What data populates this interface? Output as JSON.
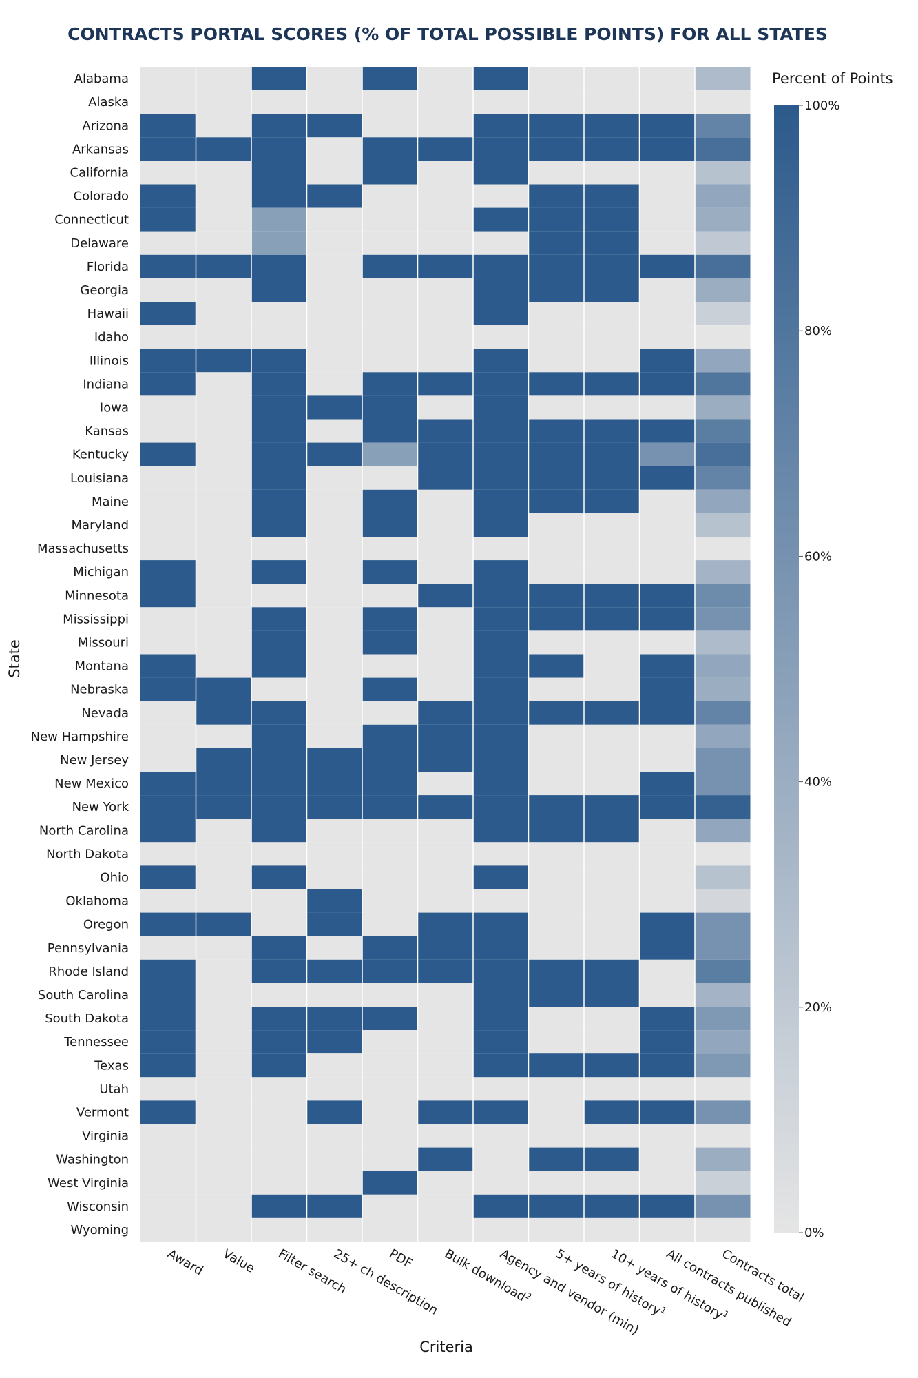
{
  "chart_data": {
    "type": "heatmap",
    "title": "CONTRACTS PORTAL SCORES (% OF TOTAL POSSIBLE POINTS) FOR ALL STATES",
    "xlabel": "Criteria",
    "ylabel": "State",
    "legend": {
      "title": "Percent of Points",
      "ticks": [
        "100%",
        "80%",
        "60%",
        "40%",
        "20%",
        "0%"
      ],
      "range": [
        0,
        100
      ],
      "color_low": "#e5e5e5",
      "color_high": "#2c5a8c"
    },
    "criteria": [
      {
        "label": "Award"
      },
      {
        "label": "Value"
      },
      {
        "label": "Filter search"
      },
      {
        "label": "25+ ch description"
      },
      {
        "label": "PDF"
      },
      {
        "label": "Bulk download",
        "sup": "2"
      },
      {
        "label": "Agency and vendor (min)"
      },
      {
        "label": "5+ years of history",
        "sup": "1"
      },
      {
        "label": "10+ years of history",
        "sup": "1"
      },
      {
        "label": "All contracts published"
      },
      {
        "label": "Contracts total"
      }
    ],
    "states": [
      "Alabama",
      "Alaska",
      "Arizona",
      "Arkansas",
      "California",
      "Colorado",
      "Connecticut",
      "Delaware",
      "Florida",
      "Georgia",
      "Hawaii",
      "Idaho",
      "Illinois",
      "Indiana",
      "Iowa",
      "Kansas",
      "Kentucky",
      "Louisiana",
      "Maine",
      "Maryland",
      "Massachusetts",
      "Michigan",
      "Minnesota",
      "Mississippi",
      "Missouri",
      "Montana",
      "Nebraska",
      "Nevada",
      "New Hampshire",
      "New Jersey",
      "New Mexico",
      "New York",
      "North Carolina",
      "North Dakota",
      "Ohio",
      "Oklahoma",
      "Oregon",
      "Pennsylvania",
      "Rhode Island",
      "South Carolina",
      "South Dakota",
      "Tennessee",
      "Texas",
      "Utah",
      "Vermont",
      "Virginia",
      "Washington",
      "West Virginia",
      "Wisconsin",
      "Wyoming"
    ],
    "values": [
      [
        0,
        0,
        100,
        0,
        100,
        0,
        100,
        0,
        0,
        0,
        30
      ],
      [
        0,
        0,
        0,
        0,
        0,
        0,
        0,
        0,
        0,
        0,
        0
      ],
      [
        100,
        0,
        100,
        100,
        0,
        0,
        100,
        100,
        100,
        100,
        70
      ],
      [
        100,
        100,
        100,
        0,
        100,
        100,
        100,
        100,
        100,
        100,
        85
      ],
      [
        0,
        0,
        100,
        0,
        100,
        0,
        100,
        0,
        0,
        0,
        25
      ],
      [
        100,
        0,
        100,
        100,
        0,
        0,
        0,
        100,
        100,
        0,
        45
      ],
      [
        100,
        0,
        50,
        0,
        0,
        0,
        100,
        100,
        100,
        0,
        40
      ],
      [
        0,
        0,
        50,
        0,
        0,
        0,
        0,
        100,
        100,
        0,
        20
      ],
      [
        100,
        100,
        100,
        0,
        100,
        100,
        100,
        100,
        100,
        100,
        85
      ],
      [
        0,
        0,
        100,
        0,
        0,
        0,
        100,
        100,
        100,
        0,
        40
      ],
      [
        100,
        0,
        0,
        0,
        0,
        0,
        100,
        0,
        0,
        0,
        15
      ],
      [
        0,
        0,
        0,
        0,
        0,
        0,
        0,
        0,
        0,
        0,
        0
      ],
      [
        100,
        100,
        100,
        0,
        0,
        0,
        100,
        0,
        0,
        100,
        45
      ],
      [
        100,
        0,
        100,
        0,
        100,
        100,
        100,
        100,
        100,
        100,
        80
      ],
      [
        0,
        0,
        100,
        100,
        100,
        0,
        100,
        0,
        0,
        0,
        40
      ],
      [
        0,
        0,
        100,
        0,
        100,
        100,
        100,
        100,
        100,
        100,
        75
      ],
      [
        100,
        0,
        100,
        100,
        50,
        100,
        100,
        100,
        100,
        60,
        85
      ],
      [
        0,
        0,
        100,
        0,
        0,
        100,
        100,
        100,
        100,
        100,
        70
      ],
      [
        0,
        0,
        100,
        0,
        100,
        0,
        100,
        100,
        100,
        0,
        45
      ],
      [
        0,
        0,
        100,
        0,
        100,
        0,
        100,
        0,
        0,
        0,
        25
      ],
      [
        0,
        0,
        0,
        0,
        0,
        0,
        0,
        0,
        0,
        0,
        0
      ],
      [
        100,
        0,
        100,
        0,
        100,
        0,
        100,
        0,
        0,
        0,
        35
      ],
      [
        100,
        0,
        0,
        0,
        0,
        100,
        100,
        100,
        100,
        100,
        65
      ],
      [
        0,
        0,
        100,
        0,
        100,
        0,
        100,
        100,
        100,
        100,
        60
      ],
      [
        0,
        0,
        100,
        0,
        100,
        0,
        100,
        0,
        0,
        0,
        30
      ],
      [
        100,
        0,
        100,
        0,
        0,
        0,
        100,
        100,
        0,
        100,
        45
      ],
      [
        100,
        100,
        0,
        0,
        100,
        0,
        100,
        0,
        0,
        100,
        40
      ],
      [
        0,
        100,
        100,
        0,
        0,
        100,
        100,
        100,
        100,
        100,
        70
      ],
      [
        0,
        0,
        100,
        0,
        100,
        100,
        100,
        0,
        0,
        0,
        45
      ],
      [
        0,
        100,
        100,
        100,
        100,
        100,
        100,
        0,
        0,
        0,
        60
      ],
      [
        100,
        100,
        100,
        100,
        100,
        0,
        100,
        0,
        0,
        100,
        60
      ],
      [
        100,
        100,
        100,
        100,
        100,
        100,
        100,
        100,
        100,
        100,
        95
      ],
      [
        100,
        0,
        100,
        0,
        0,
        0,
        100,
        100,
        100,
        0,
        45
      ],
      [
        0,
        0,
        0,
        0,
        0,
        0,
        0,
        0,
        0,
        0,
        0
      ],
      [
        100,
        0,
        100,
        0,
        0,
        0,
        100,
        0,
        0,
        0,
        25
      ],
      [
        0,
        0,
        0,
        100,
        0,
        0,
        0,
        0,
        0,
        0,
        10
      ],
      [
        100,
        100,
        0,
        100,
        0,
        100,
        100,
        0,
        0,
        100,
        60
      ],
      [
        0,
        0,
        100,
        0,
        100,
        100,
        100,
        0,
        0,
        100,
        60
      ],
      [
        100,
        0,
        100,
        100,
        100,
        100,
        100,
        100,
        100,
        0,
        75
      ],
      [
        100,
        0,
        0,
        0,
        0,
        0,
        100,
        100,
        100,
        0,
        35
      ],
      [
        100,
        0,
        100,
        100,
        100,
        0,
        100,
        0,
        0,
        100,
        55
      ],
      [
        100,
        0,
        100,
        100,
        0,
        0,
        100,
        0,
        0,
        100,
        45
      ],
      [
        100,
        0,
        100,
        0,
        0,
        0,
        100,
        100,
        100,
        100,
        55
      ],
      [
        0,
        0,
        0,
        0,
        0,
        0,
        0,
        0,
        0,
        0,
        0
      ],
      [
        100,
        0,
        0,
        100,
        0,
        100,
        100,
        0,
        100,
        100,
        60
      ],
      [
        0,
        0,
        0,
        0,
        0,
        0,
        0,
        0,
        0,
        0,
        0
      ],
      [
        0,
        0,
        0,
        0,
        0,
        100,
        0,
        100,
        100,
        0,
        40
      ],
      [
        0,
        0,
        0,
        0,
        100,
        0,
        0,
        0,
        0,
        0,
        15
      ],
      [
        0,
        0,
        100,
        100,
        0,
        0,
        100,
        100,
        100,
        100,
        60
      ],
      [
        0,
        0,
        0,
        0,
        0,
        0,
        0,
        0,
        0,
        0,
        0
      ]
    ]
  }
}
